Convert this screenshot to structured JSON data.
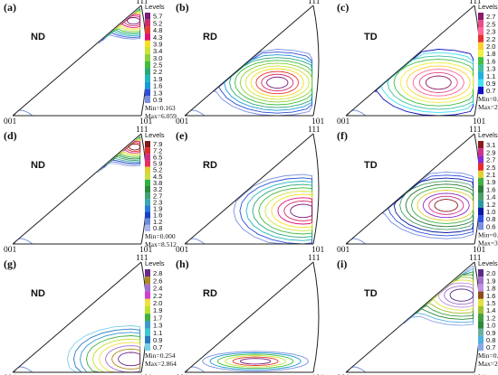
{
  "chart_data": [
    {
      "type": "heatmap",
      "label": "(a)",
      "direction": "ND",
      "corners": {
        "top": "111",
        "left": "001",
        "right": "101"
      },
      "legend_title": "Levels",
      "levels": [
        "5.7",
        "5.2",
        "4.8",
        "4.3",
        "3.9",
        "3.4",
        "3.0",
        "2.5",
        "2.2",
        "1.9",
        "1.6",
        "1.3",
        "0.9"
      ],
      "colors": [
        "#7a1a7a",
        "#d12a6a",
        "#e63b2e",
        "#e0107a",
        "#f3e020",
        "#cde33a",
        "#8ad03a",
        "#3fbd3a",
        "#2aa87a",
        "#22b5c0",
        "#1a9ad8",
        "#2c4fd8",
        "#7b8fe0"
      ],
      "min": "Min=0.163",
      "max": "Max=6.059"
    },
    {
      "type": "heatmap",
      "label": "(b)",
      "direction": "RD",
      "corners": {
        "top": "111",
        "left": "001",
        "right": "101"
      },
      "legend_title": "",
      "levels": [],
      "colors": [],
      "min": "",
      "max": ""
    },
    {
      "type": "heatmap",
      "label": "(c)",
      "direction": "TD",
      "corners": {
        "top": "111",
        "left": "001",
        "right": "101"
      },
      "legend_title": "Levels",
      "levels": [
        "2.7",
        "2.5",
        "2.3",
        "2.2",
        "2.0",
        "1.8",
        "1.6",
        "1.3",
        "1.1",
        "0.9",
        "0.7"
      ],
      "colors": [
        "#8a1a6a",
        "#e84a8a",
        "#ff6699",
        "#e83030",
        "#ffd030",
        "#f0f040",
        "#40c040",
        "#40c0a0",
        "#20b0e0",
        "#40e0f0",
        "#1010c0"
      ],
      "min": "Min=0.298",
      "max": "Max=2.775"
    },
    {
      "type": "heatmap",
      "label": "(d)",
      "direction": "ND",
      "corners": {
        "top": "111",
        "left": "001",
        "right": "101"
      },
      "legend_title": "Levels",
      "levels": [
        "7.9",
        "7.2",
        "6.5",
        "5.9",
        "5.2",
        "4.5",
        "3.8",
        "3.2",
        "2.7",
        "2.3",
        "1.9",
        "1.6",
        "1.2",
        "0.8"
      ],
      "colors": [
        "#7a1a1a",
        "#e02a2a",
        "#d02a8a",
        "#e83060",
        "#e0d030",
        "#c8e040",
        "#30b040",
        "#2a8a3a",
        "#40a070",
        "#3aa8b0",
        "#2a7ad8",
        "#1a40c8",
        "#6a8adc",
        "#a8b8ec"
      ],
      "min": "Min=0.000",
      "max": "Max=8.512"
    },
    {
      "type": "heatmap",
      "label": "(e)",
      "direction": "RD",
      "corners": {
        "top": "111",
        "left": "001",
        "right": "101"
      },
      "legend_title": "",
      "levels": [],
      "colors": [],
      "min": "",
      "max": ""
    },
    {
      "type": "heatmap",
      "label": "(f)",
      "direction": "TD",
      "corners": {
        "top": "111",
        "left": "001",
        "right": "101"
      },
      "legend_title": "Levels",
      "levels": [
        "3.1",
        "2.9",
        "2.7",
        "2.5",
        "2.1",
        "1.9",
        "1.6",
        "1.4",
        "1.2",
        "1.0",
        "0.8",
        "0.6"
      ],
      "colors": [
        "#8a1a1a",
        "#d03090",
        "#8a2ad0",
        "#e82a2a",
        "#e0d030",
        "#40b040",
        "#2a7a3a",
        "#4aa06a",
        "#2a9a9a",
        "#0a1aa0",
        "#3050e0",
        "#7a90e0"
      ],
      "min": "Min=0.000",
      "max": "Max=3.194"
    },
    {
      "type": "heatmap",
      "label": "(g)",
      "direction": "ND",
      "corners": {
        "top": "111",
        "left": "001",
        "right": "101"
      },
      "legend_title": "Levels",
      "levels": [
        "2.8",
        "2.6",
        "2.4",
        "2.2",
        "2.0",
        "1.9",
        "1.7",
        "1.3",
        "1.1",
        "0.9",
        "0.7"
      ],
      "colors": [
        "#6a2a8a",
        "#b08a1a",
        "#a070d0",
        "#d040d0",
        "#f0e040",
        "#c0e030",
        "#40b040",
        "#3a9ad0",
        "#40c8d0",
        "#2a7ac0",
        "#7ad0e8"
      ],
      "min": "Min=0.254",
      "max": "Max=2.864"
    },
    {
      "type": "heatmap",
      "label": "(h)",
      "direction": "RD",
      "corners": {
        "top": "111",
        "left": "001",
        "right": "101"
      },
      "legend_title": "",
      "levels": [],
      "colors": [],
      "min": "",
      "max": ""
    },
    {
      "type": "heatmap",
      "label": "(i)",
      "direction": "TD",
      "corners": {
        "top": "111",
        "left": "001",
        "right": "101"
      },
      "legend_title": "Levels",
      "levels": [
        "2.0",
        "1.9",
        "1.8",
        "1.6",
        "1.5",
        "1.4",
        "1.2",
        "1.0",
        "0.9",
        "0.8",
        "0.7"
      ],
      "colors": [
        "#5a2a8a",
        "#a070c8",
        "#c090e0",
        "#8a4a1a",
        "#e0e040",
        "#a0c030",
        "#40a040",
        "#2a8a3a",
        "#6ab0a0",
        "#50b0e0",
        "#8aa8e8"
      ],
      "min": "Min=0.337",
      "max": "Max=2.070"
    }
  ]
}
